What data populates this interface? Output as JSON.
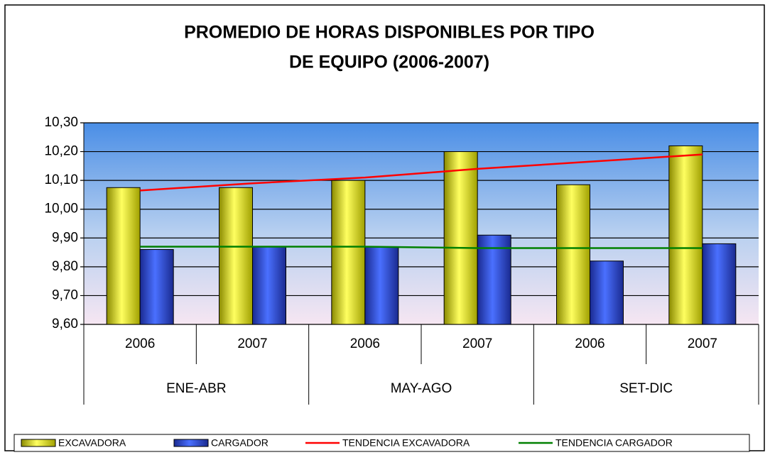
{
  "chart_data": {
    "type": "bar",
    "title": [
      "PROMEDIO DE HORAS DISPONIBLES POR TIPO",
      "DE EQUIPO (2006-2007)"
    ],
    "categories": [
      "2006",
      "2007",
      "2006",
      "2007",
      "2006",
      "2007"
    ],
    "groups": [
      "ENE-ABR",
      "MAY-AGO",
      "SET-DIC"
    ],
    "series": [
      {
        "name": "EXCAVADORA",
        "color": "#e8e800",
        "values": [
          10.075,
          10.075,
          10.1,
          10.2,
          10.085,
          10.22
        ]
      },
      {
        "name": "CARGADOR",
        "color": "#2f4fd8",
        "values": [
          9.86,
          9.87,
          9.87,
          9.91,
          9.82,
          9.88
        ]
      },
      {
        "name": "TENDENCIA EXCAVADORA",
        "type": "line",
        "color": "#ff0000",
        "values": [
          10.065,
          10.09,
          10.11,
          10.14,
          10.165,
          10.19
        ]
      },
      {
        "name": "TENDENCIA CARGADOR",
        "type": "line",
        "color": "#008000",
        "values": [
          9.87,
          9.87,
          9.87,
          9.865,
          9.865,
          9.865
        ]
      }
    ],
    "ylim": [
      9.6,
      10.3
    ],
    "yticks": [
      {
        "value": 9.6,
        "label": "9,60"
      },
      {
        "value": 9.7,
        "label": "9,70"
      },
      {
        "value": 9.8,
        "label": "9,80"
      },
      {
        "value": 9.9,
        "label": "9,90"
      },
      {
        "value": 10.0,
        "label": "10,00"
      },
      {
        "value": 10.1,
        "label": "10,10"
      },
      {
        "value": 10.2,
        "label": "10,20"
      },
      {
        "value": 10.3,
        "label": "10,30"
      }
    ],
    "grid": true,
    "legend": "bottom"
  }
}
